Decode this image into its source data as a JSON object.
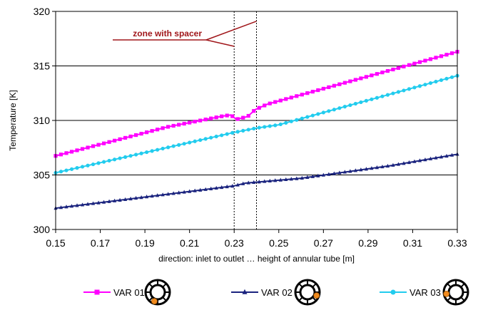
{
  "chart_data": {
    "type": "line",
    "title": "",
    "xlabel": "direction: inlet to outlet … height of annular tube [m]",
    "ylabel": "Temperature [K]",
    "xlim": [
      0.15,
      0.33
    ],
    "ylim": [
      300,
      320
    ],
    "xticks": [
      "0.15",
      "0.17",
      "0.19",
      "0.21",
      "0.23",
      "0.25",
      "0.27",
      "0.29",
      "0.31",
      "0.33"
    ],
    "yticks": [
      "300",
      "305",
      "310",
      "315",
      "320"
    ],
    "grid": "horizontal",
    "legend_placement": "bottom",
    "annotation": {
      "text": "zone with spacer",
      "color": "#a0161a",
      "zone_start_x": 0.23,
      "zone_end_x": 0.24,
      "left_pointer_target": [
        0.23,
        316.8
      ],
      "right_pointer_target": [
        0.24,
        319.1
      ]
    },
    "series": [
      {
        "name": "VAR 01",
        "color": "#ff00ff",
        "marker": "square",
        "points": [
          [
            0.15,
            306.75
          ],
          [
            0.2,
            309.4
          ],
          [
            0.225,
            310.4
          ],
          [
            0.2285,
            310.5
          ],
          [
            0.231,
            310.1
          ],
          [
            0.236,
            310.35
          ],
          [
            0.2395,
            311.0
          ],
          [
            0.245,
            311.5
          ],
          [
            0.33,
            316.3
          ]
        ]
      },
      {
        "name": "VAR 02",
        "color": "#1a237e",
        "marker": "triangle",
        "points": [
          [
            0.15,
            301.95
          ],
          [
            0.23,
            304.0
          ],
          [
            0.235,
            304.25
          ],
          [
            0.26,
            304.7
          ],
          [
            0.3,
            305.85
          ],
          [
            0.33,
            306.9
          ]
        ]
      },
      {
        "name": "VAR 03",
        "color": "#22ccee",
        "marker": "circle",
        "points": [
          [
            0.15,
            305.2
          ],
          [
            0.23,
            308.9
          ],
          [
            0.24,
            309.3
          ],
          [
            0.25,
            309.6
          ],
          [
            0.33,
            314.1
          ]
        ]
      }
    ],
    "legend_icon": "tube-cross-section-icon"
  }
}
